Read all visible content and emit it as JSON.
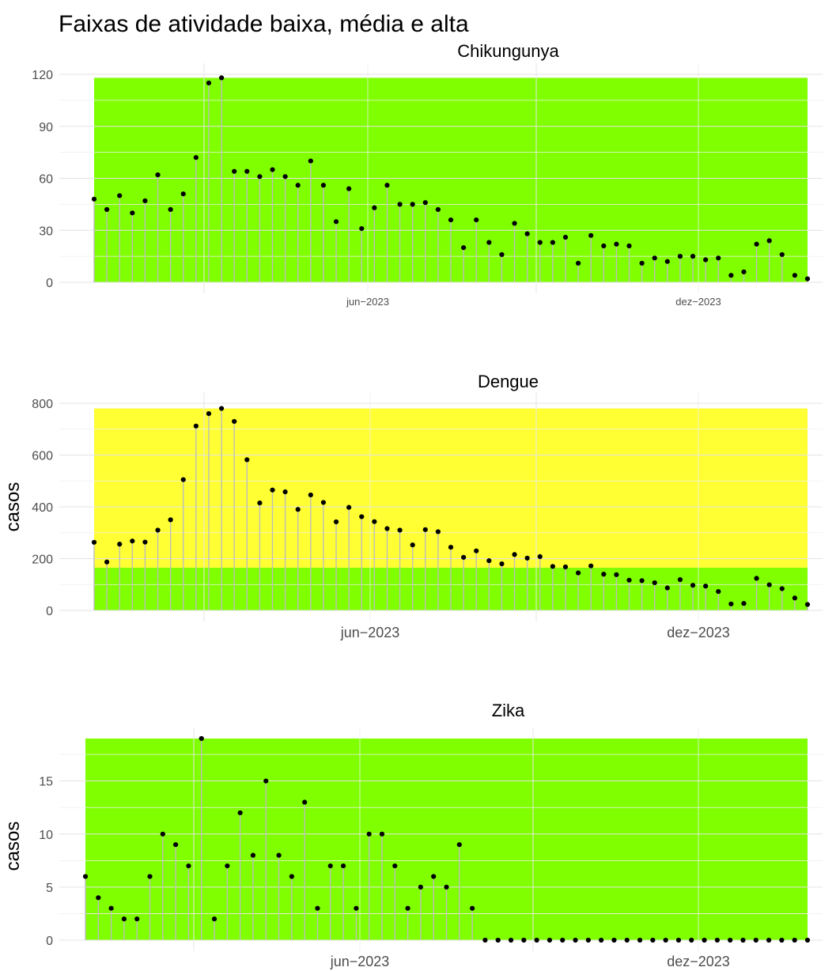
{
  "title": "Faixas de atividade baixa, média e alta",
  "colors": {
    "baixa": "#7fff00",
    "media": "#ffff33",
    "stem": "#bdbdbd",
    "point": "#000000",
    "grid": "#ebebeb"
  },
  "chart_data": [
    {
      "type": "lollipop",
      "title": "Chikungunya",
      "ylabel": "",
      "ylim": [
        0,
        120
      ],
      "yticks": [
        "0",
        "30",
        "60",
        "90",
        "120"
      ],
      "xticks": [
        "jun−2023",
        "dez−2023"
      ],
      "bands": [
        {
          "level": "baixa",
          "from": 0,
          "to": 118
        }
      ],
      "values": [
        48,
        42,
        50,
        40,
        47,
        62,
        42,
        51,
        72,
        115,
        118,
        64,
        64,
        61,
        65,
        61,
        56,
        70,
        56,
        35,
        54,
        31,
        43,
        56,
        45,
        45,
        46,
        42,
        36,
        20,
        36,
        23,
        16,
        34,
        28,
        23,
        23,
        26,
        11,
        27,
        21,
        22,
        21,
        11,
        14,
        12,
        15,
        15,
        13,
        14,
        4,
        6,
        22,
        24,
        16,
        4,
        2
      ]
    },
    {
      "type": "lollipop",
      "title": "Dengue",
      "ylabel": "casos",
      "ylim": [
        0,
        800
      ],
      "yticks": [
        "0",
        "200",
        "400",
        "600",
        "800"
      ],
      "xticks": [
        "jun−2023",
        "dez−2023"
      ],
      "bands": [
        {
          "level": "baixa",
          "from": 0,
          "to": 165
        },
        {
          "level": "media",
          "from": 165,
          "to": 780
        }
      ],
      "values": [
        263,
        187,
        256,
        268,
        264,
        310,
        350,
        505,
        712,
        760,
        780,
        730,
        582,
        415,
        465,
        458,
        390,
        446,
        417,
        342,
        398,
        362,
        343,
        316,
        310,
        253,
        312,
        304,
        244,
        205,
        230,
        192,
        180,
        216,
        202,
        208,
        170,
        168,
        145,
        172,
        140,
        138,
        117,
        115,
        107,
        87,
        119,
        97,
        94,
        73,
        25,
        27,
        124,
        99,
        84,
        48,
        23
      ]
    },
    {
      "type": "lollipop",
      "title": "Zika",
      "ylabel": "casos",
      "ylim": [
        0,
        19
      ],
      "yticks": [
        "0",
        "5",
        "10",
        "15"
      ],
      "xticks": [
        "jun−2023",
        "dez−2023"
      ],
      "bands": [
        {
          "level": "baixa",
          "from": 0,
          "to": 19
        }
      ],
      "values": [
        6,
        4,
        3,
        2,
        2,
        6,
        10,
        9,
        7,
        19,
        2,
        7,
        12,
        8,
        15,
        8,
        6,
        13,
        3,
        7,
        7,
        3,
        10,
        10,
        7,
        3,
        5,
        6,
        5,
        9,
        3,
        0,
        0,
        0,
        0,
        0,
        0,
        0,
        0,
        0,
        0,
        0,
        0,
        0,
        0,
        0,
        0,
        0,
        0,
        0,
        0,
        0,
        0,
        0,
        0,
        0,
        0
      ]
    }
  ]
}
